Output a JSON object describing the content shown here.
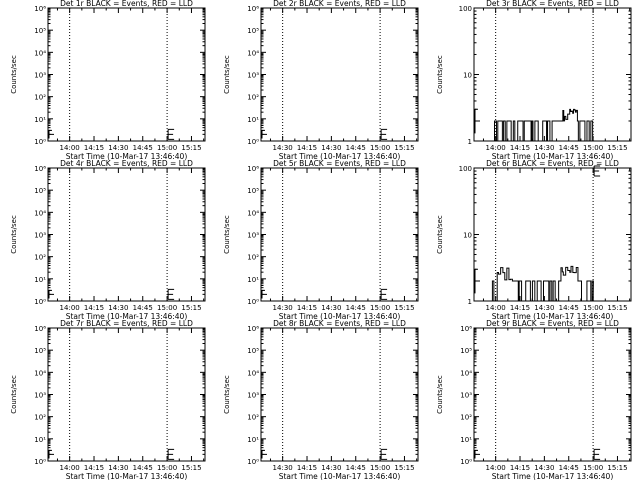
{
  "chart_data": [
    {
      "type": "line",
      "title": "Det 1r BLACK = Events, RED = LLD",
      "xlabel": "Start Time (10-Mar-17 13:46:40)",
      "ylabel": "Counts/sec",
      "scale": "log",
      "ylim": [
        1,
        1000000
      ],
      "yticks": [
        "10⁰",
        "10¹",
        "10²",
        "10³",
        "10⁴",
        "10⁵",
        "10⁶"
      ],
      "xticks": [
        "14:00",
        "14:15",
        "14:30",
        "14:45",
        "15:00",
        "15:15"
      ],
      "series": [],
      "markers": [
        {
          "x": "15:00",
          "y": 2
        }
      ]
    },
    {
      "type": "line",
      "title": "Det 2r BLACK = Events, RED = LLD",
      "xlabel": "Start Time (10-Mar-17 13:46:40)",
      "ylabel": "Counts/sec",
      "scale": "log",
      "ylim": [
        1,
        1000000
      ],
      "yticks": [
        "10⁰",
        "10¹",
        "10²",
        "10³",
        "10⁴",
        "10⁵",
        "10⁶"
      ],
      "xticks": [
        "14:30",
        "14:15",
        "14:30",
        "14:45",
        "15:00",
        "15:15"
      ],
      "series": [],
      "markers": [
        {
          "x": "15:00",
          "y": 2
        }
      ]
    },
    {
      "type": "line",
      "title": "Det 3r BLACK = Events, RED = LLD",
      "xlabel": "Start Time (10-Mar-17 13:46:40)",
      "ylabel": "Counts/sec",
      "scale": "log",
      "ylim": [
        1,
        100
      ],
      "yticks": [
        "1",
        "10",
        "100"
      ],
      "xticks": [
        "14:00",
        "14:15",
        "14:30",
        "14:45",
        "15:00",
        "15:15"
      ],
      "series": [
        {
          "style": "dense-step",
          "start": "13:58",
          "end": "15:00",
          "base": 1,
          "typical": 2,
          "peak": [
            {
              "x": "14:45",
              "y": 3
            }
          ]
        }
      ],
      "markers": []
    },
    {
      "type": "line",
      "title": "Det 4r BLACK = Events, RED = LLD",
      "xlabel": "Start Time (10-Mar-17 13:46:40)",
      "ylabel": "Counts/sec",
      "scale": "log",
      "ylim": [
        1,
        1000000
      ],
      "yticks": [
        "10⁰",
        "10¹",
        "10²",
        "10³",
        "10⁴",
        "10⁵",
        "10⁶"
      ],
      "xticks": [
        "14:00",
        "14:15",
        "14:30",
        "14:45",
        "15:00",
        "15:15"
      ],
      "series": [],
      "markers": [
        {
          "x": "15:00",
          "y": 2
        }
      ]
    },
    {
      "type": "line",
      "title": "Det 5r BLACK = Events, RED = LLD",
      "xlabel": "Start Time (10-Mar-17 13:46:40)",
      "ylabel": "Counts/sec",
      "scale": "log",
      "ylim": [
        1,
        1000000
      ],
      "yticks": [
        "10⁰",
        "10¹",
        "10²",
        "10³",
        "10⁴",
        "10⁵",
        "10⁶"
      ],
      "xticks": [
        "14:30",
        "14:15",
        "14:30",
        "14:45",
        "15:00",
        "15:15"
      ],
      "series": [],
      "markers": [
        {
          "x": "15:00",
          "y": 2
        }
      ]
    },
    {
      "type": "line",
      "title": "Det 6r BLACK = Events, RED = LLD",
      "xlabel": "Start Time (10-Mar-17 13:46:40)",
      "ylabel": "Counts/sec",
      "scale": "log",
      "ylim": [
        1,
        100
      ],
      "yticks": [
        "1",
        "10",
        "100"
      ],
      "xticks": [
        "14:00",
        "14:15",
        "14:30",
        "14:45",
        "15:00",
        "15:15"
      ],
      "series": [
        {
          "style": "dense-step",
          "start": "13:58",
          "end": "15:00",
          "base": 1,
          "typical": 2,
          "peak": [
            {
              "x": "14:05",
              "y": 3.5
            },
            {
              "x": "14:45",
              "y": 3.5
            }
          ]
        }
      ],
      "markers": [
        {
          "x": "15:00",
          "y": 90
        }
      ]
    },
    {
      "type": "line",
      "title": "Det 7r BLACK = Events, RED = LLD",
      "xlabel": "Start Time (10-Mar-17 13:46:40)",
      "ylabel": "Counts/sec",
      "scale": "log",
      "ylim": [
        1,
        1000000
      ],
      "yticks": [
        "10⁰",
        "10¹",
        "10²",
        "10³",
        "10⁴",
        "10⁵",
        "10⁶"
      ],
      "xticks": [
        "14:00",
        "14:15",
        "14:30",
        "14:45",
        "15:00",
        "15:15"
      ],
      "series": [],
      "markers": [
        {
          "x": "15:00",
          "y": 2
        }
      ]
    },
    {
      "type": "line",
      "title": "Det 8r BLACK = Events, RED = LLD",
      "xlabel": "Start Time (10-Mar-17 13:46:40)",
      "ylabel": "Counts/sec",
      "scale": "log",
      "ylim": [
        1,
        1000000
      ],
      "yticks": [
        "10⁰",
        "10¹",
        "10²",
        "10³",
        "10⁴",
        "10⁵",
        "10⁶"
      ],
      "xticks": [
        "14:30",
        "14:15",
        "14:30",
        "14:45",
        "15:00",
        "15:15"
      ],
      "series": [],
      "markers": [
        {
          "x": "15:00",
          "y": 2
        }
      ]
    },
    {
      "type": "line",
      "title": "Det 9r BLACK = Events, RED = LLD",
      "xlabel": "Start Time (10-Mar-17 13:46:40)",
      "ylabel": "Counts/sec",
      "scale": "log",
      "ylim": [
        1,
        1000000
      ],
      "yticks": [
        "10⁰",
        "10¹",
        "10²",
        "10³",
        "10⁴",
        "10⁵",
        "10⁶"
      ],
      "xticks": [
        "14:00",
        "14:15",
        "14:30",
        "14:45",
        "15:00",
        "15:15"
      ],
      "series": [],
      "markers": [
        {
          "x": "15:00",
          "y": 2
        }
      ]
    }
  ],
  "x_domain": [
    "13:46:40",
    "15:23:20"
  ],
  "dotted_lines": [
    "14:00",
    "15:00"
  ],
  "colors": {
    "events": "#000000",
    "lld": "#ff0000",
    "background": "#ffffff"
  }
}
